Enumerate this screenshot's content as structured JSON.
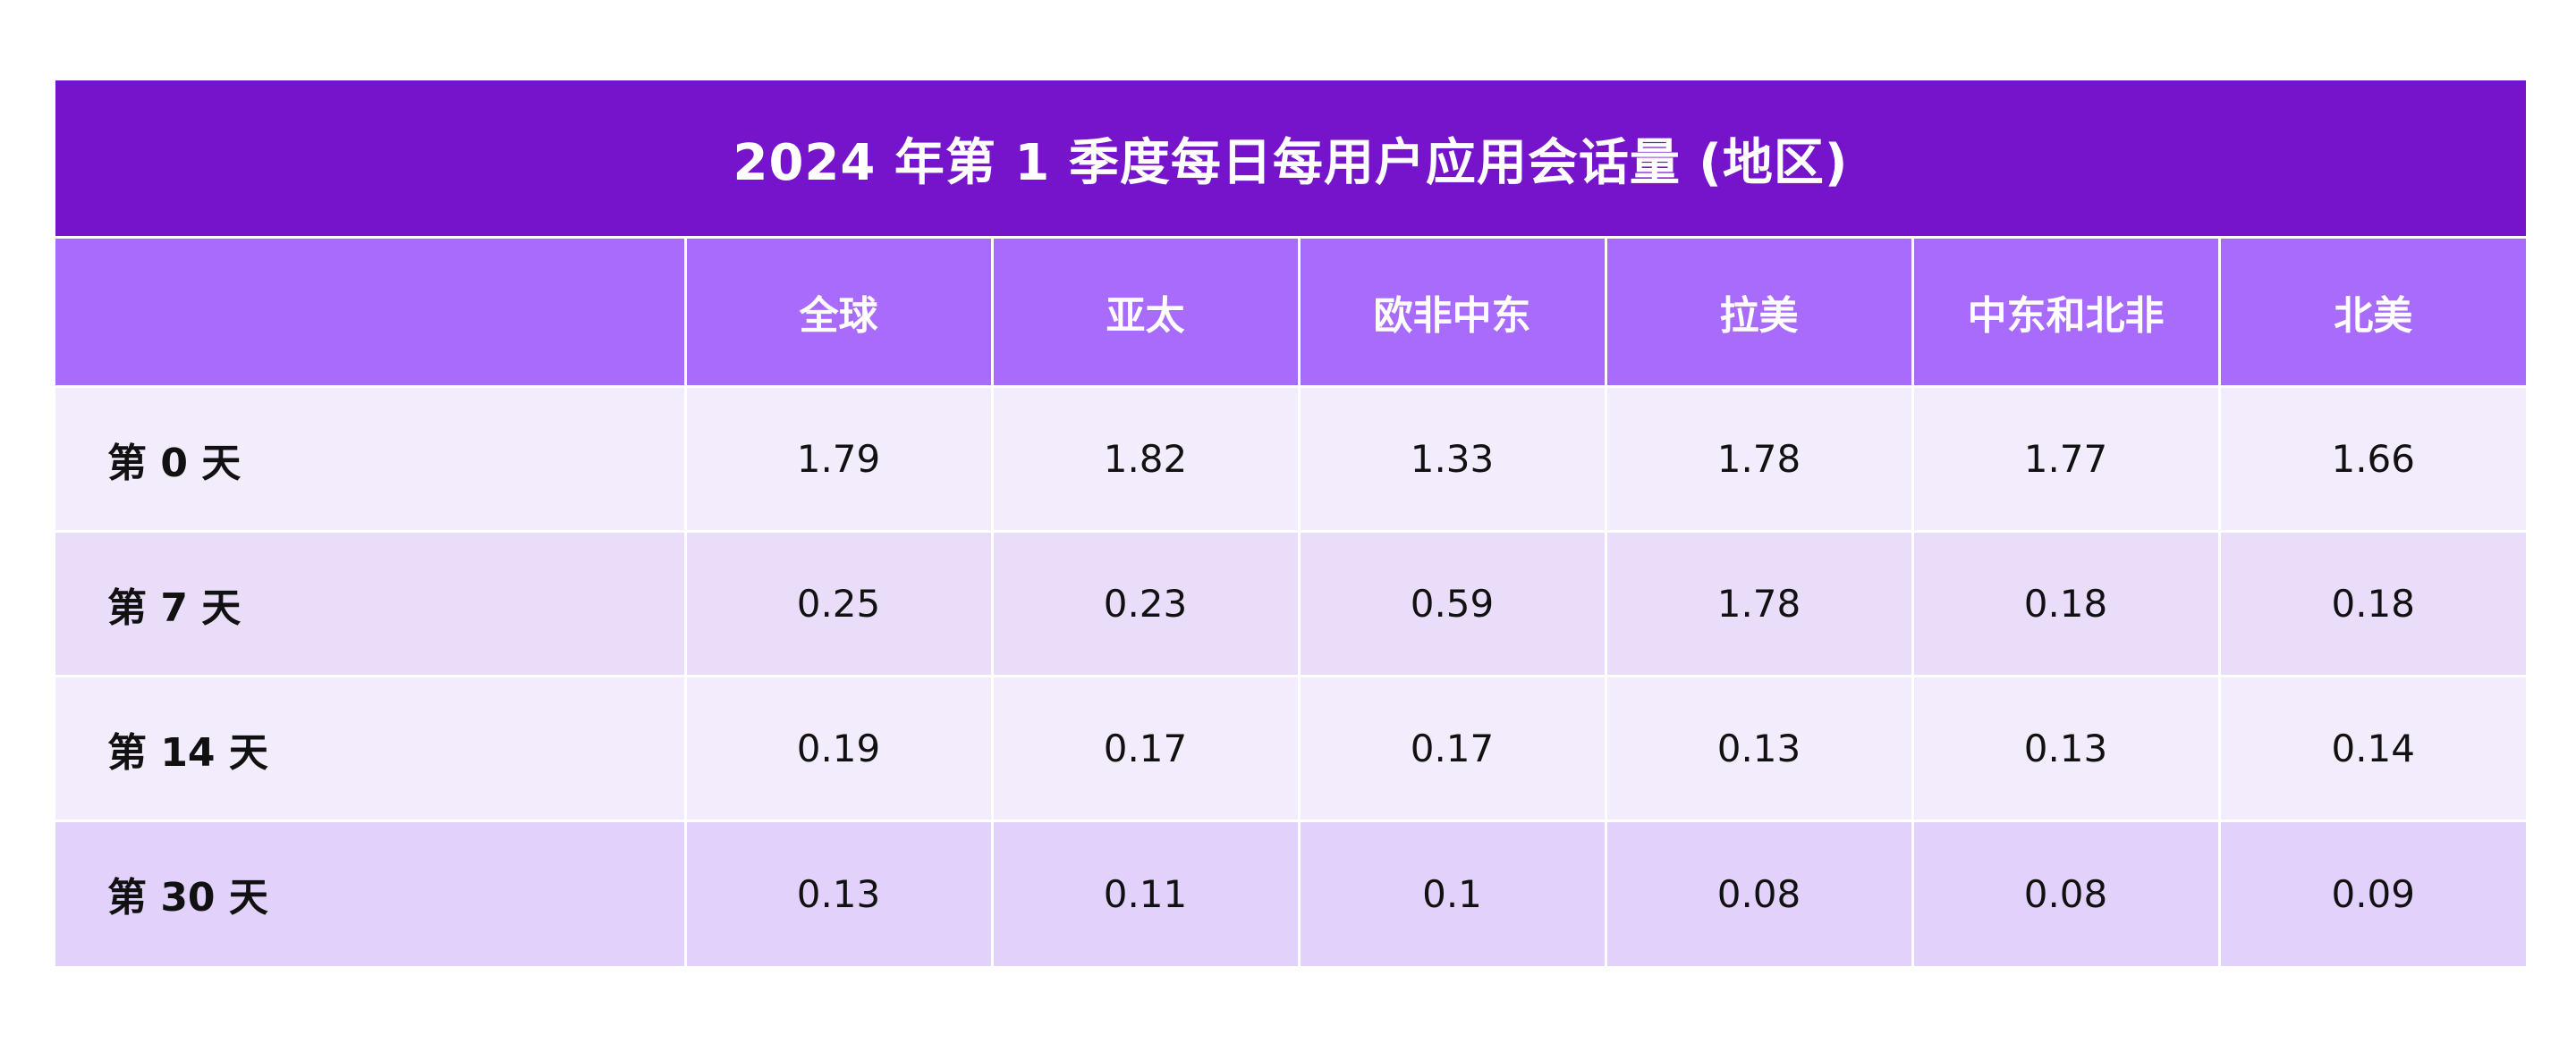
{
  "colors": {
    "title_bg": "#7514cb",
    "header_bg": "#a96bfb",
    "row_bgs": [
      "#f3ecfd",
      "#e9ddf9",
      "#f3ecfd",
      "#e2d2fb"
    ]
  },
  "chart_data": {
    "type": "table",
    "title": "2024 年第 1 季度每日每用户应用会话量 (地区)",
    "columns": [
      "",
      "全球",
      "亚太",
      "欧非中东",
      "拉美",
      "中东和北非",
      "北美"
    ],
    "rows": [
      {
        "label": "第 0 天",
        "values": [
          "1.79",
          "1.82",
          "1.33",
          "1.78",
          "1.77",
          "1.66"
        ]
      },
      {
        "label": "第 7 天",
        "values": [
          "0.25",
          "0.23",
          "0.59",
          "1.78",
          "0.18",
          "0.18"
        ]
      },
      {
        "label": "第 14 天",
        "values": [
          "0.19",
          "0.17",
          "0.17",
          "0.13",
          "0.13",
          "0.14"
        ]
      },
      {
        "label": "第 30 天",
        "values": [
          "0.13",
          "0.11",
          "0.1",
          "0.08",
          "0.08",
          "0.09"
        ]
      }
    ]
  }
}
